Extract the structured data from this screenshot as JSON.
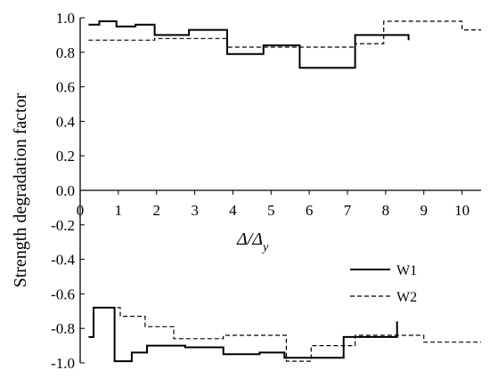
{
  "chart_data": {
    "type": "line",
    "xlabel": "Δ/Δy",
    "xlabel_main": "Δ/Δ",
    "xlabel_sub": "y",
    "ylabel": "Strength degradation factor",
    "xlim": [
      0,
      10.5
    ],
    "ylim": [
      -1.0,
      1.0
    ],
    "x_ticks": [
      "0",
      "1",
      "2",
      "3",
      "4",
      "5",
      "6",
      "7",
      "8",
      "9",
      "10"
    ],
    "y_ticks": [
      "1.0",
      "0.8",
      "0.6",
      "0.4",
      "0.2",
      "0.0",
      "-0.2",
      "-0.4",
      "-0.6",
      "-0.8",
      "-1.0"
    ],
    "grid": false,
    "legend_position": "lower-right",
    "series": [
      {
        "name": "W1",
        "style": "solid",
        "color": "#000000",
        "points": [
          [
            0.22,
            0.96
          ],
          [
            0.5,
            0.96
          ],
          [
            0.5,
            0.98
          ],
          [
            0.95,
            0.98
          ],
          [
            0.95,
            0.95
          ],
          [
            1.45,
            0.95
          ],
          [
            1.45,
            0.96
          ],
          [
            1.95,
            0.96
          ],
          [
            1.95,
            0.9
          ],
          [
            2.85,
            0.9
          ],
          [
            2.85,
            0.93
          ],
          [
            3.85,
            0.93
          ],
          [
            3.85,
            0.79
          ],
          [
            4.8,
            0.79
          ],
          [
            4.8,
            0.84
          ],
          [
            5.75,
            0.84
          ],
          [
            5.75,
            0.71
          ],
          [
            7.2,
            0.71
          ],
          [
            7.2,
            0.9
          ],
          [
            8.6,
            0.9
          ],
          [
            8.6,
            0.87
          ]
        ]
      },
      {
        "name": "W2",
        "style": "dashed",
        "color": "#000000",
        "points": [
          [
            0.22,
            0.87
          ],
          [
            1.95,
            0.87
          ],
          [
            1.95,
            0.88
          ],
          [
            3.85,
            0.88
          ],
          [
            3.85,
            0.83
          ],
          [
            5.75,
            0.83
          ],
          [
            5.75,
            0.83
          ],
          [
            7.2,
            0.83
          ],
          [
            7.2,
            0.85
          ],
          [
            7.95,
            0.85
          ],
          [
            7.95,
            0.98
          ],
          [
            10.0,
            0.98
          ],
          [
            10.0,
            0.93
          ],
          [
            10.5,
            0.93
          ]
        ]
      },
      {
        "name": "W1",
        "style": "solid",
        "color": "#000000",
        "points": [
          [
            0.22,
            -0.85
          ],
          [
            0.35,
            -0.85
          ],
          [
            0.35,
            -0.68
          ],
          [
            0.9,
            -0.68
          ],
          [
            0.9,
            -0.99
          ],
          [
            1.35,
            -0.99
          ],
          [
            1.35,
            -0.94
          ],
          [
            1.75,
            -0.94
          ],
          [
            1.75,
            -0.9
          ],
          [
            2.75,
            -0.9
          ],
          [
            2.75,
            -0.91
          ],
          [
            3.75,
            -0.91
          ],
          [
            3.75,
            -0.95
          ],
          [
            4.7,
            -0.95
          ],
          [
            4.7,
            -0.94
          ],
          [
            5.35,
            -0.94
          ],
          [
            5.35,
            -0.97
          ],
          [
            6.9,
            -0.97
          ],
          [
            6.9,
            -0.85
          ],
          [
            8.3,
            -0.85
          ],
          [
            8.3,
            -0.76
          ]
        ]
      },
      {
        "name": "W2",
        "style": "dashed",
        "color": "#000000",
        "points": [
          [
            0.6,
            -0.68
          ],
          [
            1.05,
            -0.68
          ],
          [
            1.05,
            -0.73
          ],
          [
            1.7,
            -0.73
          ],
          [
            1.7,
            -0.79
          ],
          [
            2.45,
            -0.79
          ],
          [
            2.45,
            -0.86
          ],
          [
            3.75,
            -0.86
          ],
          [
            3.75,
            -0.84
          ],
          [
            5.4,
            -0.84
          ],
          [
            5.4,
            -0.99
          ],
          [
            6.05,
            -0.99
          ],
          [
            6.05,
            -0.9
          ],
          [
            7.2,
            -0.9
          ],
          [
            7.2,
            -0.84
          ],
          [
            9.0,
            -0.84
          ],
          [
            9.0,
            -0.88
          ],
          [
            10.5,
            -0.88
          ]
        ]
      }
    ]
  },
  "legend": {
    "items": [
      {
        "label": "W1",
        "style": "solid"
      },
      {
        "label": "W2",
        "style": "dashed"
      }
    ]
  }
}
